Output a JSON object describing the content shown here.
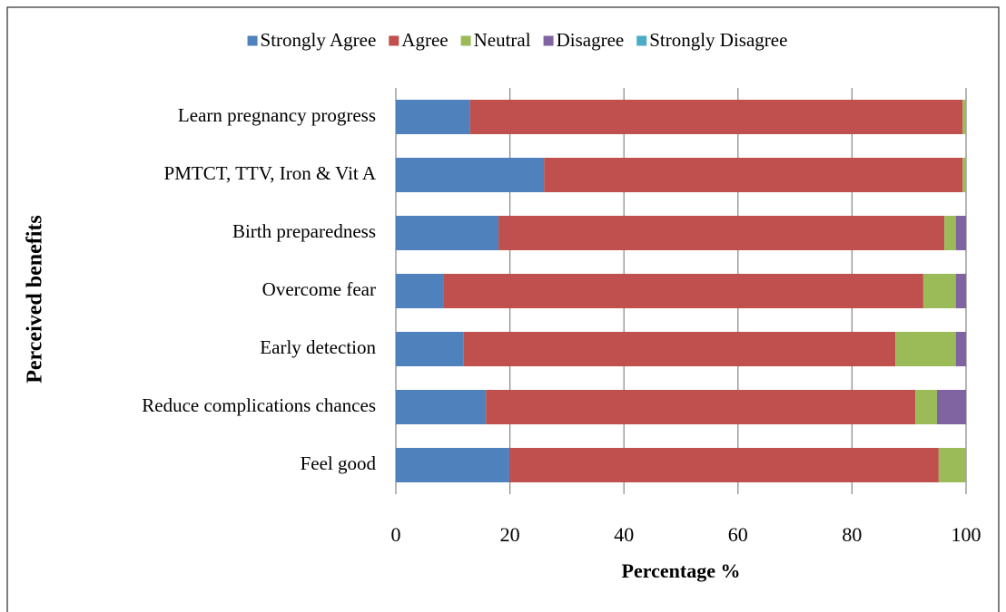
{
  "chart_data": {
    "type": "stacked-bar-horizontal",
    "categories": [
      "Learn pregnancy progress",
      "PMTCT, TTV, Iron & Vit A",
      "Birth preparedness",
      "Overcome fear",
      "Early detection",
      "Reduce complications chances",
      "Feel good"
    ],
    "series": [
      {
        "name": "Strongly Agree",
        "color": "#4f81bd",
        "values": [
          13,
          26,
          18,
          8.3,
          11.9,
          15.8,
          19.9
        ]
      },
      {
        "name": "Agree",
        "color": "#c0504d",
        "values": [
          86.4,
          73.4,
          78.2,
          84.2,
          75.7,
          75.3,
          75.3
        ]
      },
      {
        "name": "Neutral",
        "color": "#9bbb59",
        "values": [
          0.6,
          0.6,
          2,
          5.7,
          10.6,
          3.8,
          4.8
        ]
      },
      {
        "name": "Disagree",
        "color": "#8064a2",
        "values": [
          0,
          0,
          1.8,
          1.8,
          1.8,
          5.1,
          0
        ]
      },
      {
        "name": "Strongly Disagree",
        "color": "#4bacc6",
        "values": [
          0,
          0,
          0,
          0,
          0,
          0,
          0
        ]
      }
    ],
    "xlabel": "Percentage %",
    "ylabel": "Perceived benefits",
    "xlim": [
      0,
      100
    ],
    "xticks": [
      0,
      20,
      40,
      60,
      80,
      100
    ],
    "grid": true,
    "legend": "top"
  }
}
